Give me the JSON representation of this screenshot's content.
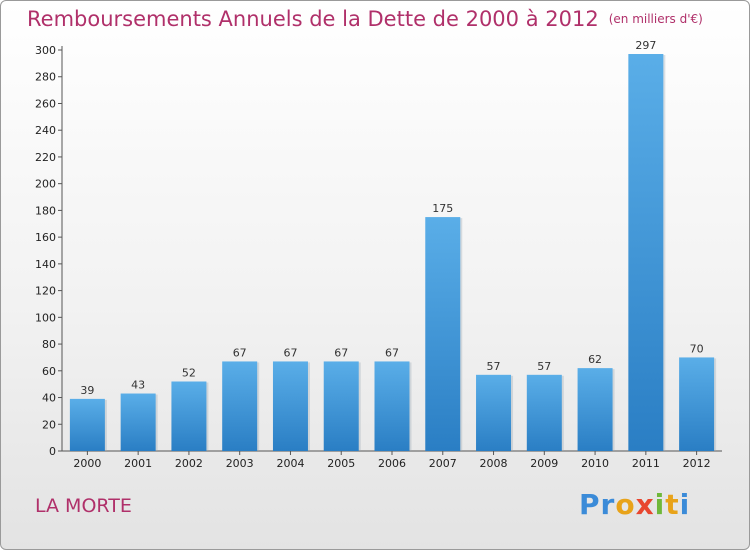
{
  "chart_data": {
    "type": "bar",
    "title": "Remboursements Annuels de la Dette de 2000 à 2012",
    "unit": "(en milliers d'€)",
    "categories": [
      "2000",
      "2001",
      "2002",
      "2003",
      "2004",
      "2005",
      "2006",
      "2007",
      "2008",
      "2009",
      "2010",
      "2011",
      "2012"
    ],
    "values": [
      39,
      43,
      52,
      67,
      67,
      67,
      67,
      175,
      57,
      57,
      62,
      297,
      70
    ],
    "ylim": [
      0,
      300
    ],
    "yticks": [
      0,
      20,
      40,
      60,
      80,
      100,
      120,
      140,
      160,
      180,
      200,
      220,
      240,
      260,
      280,
      300
    ],
    "xlabel": "",
    "ylabel": "",
    "grid": false,
    "colors": {
      "bar_light": "#5aaee8",
      "bar_dark": "#2a7ec4",
      "axis": "#555555"
    }
  },
  "commune": "LA MORTE",
  "logo": {
    "parts": [
      "Pr",
      "o",
      "x",
      "i",
      "t",
      "i"
    ]
  }
}
